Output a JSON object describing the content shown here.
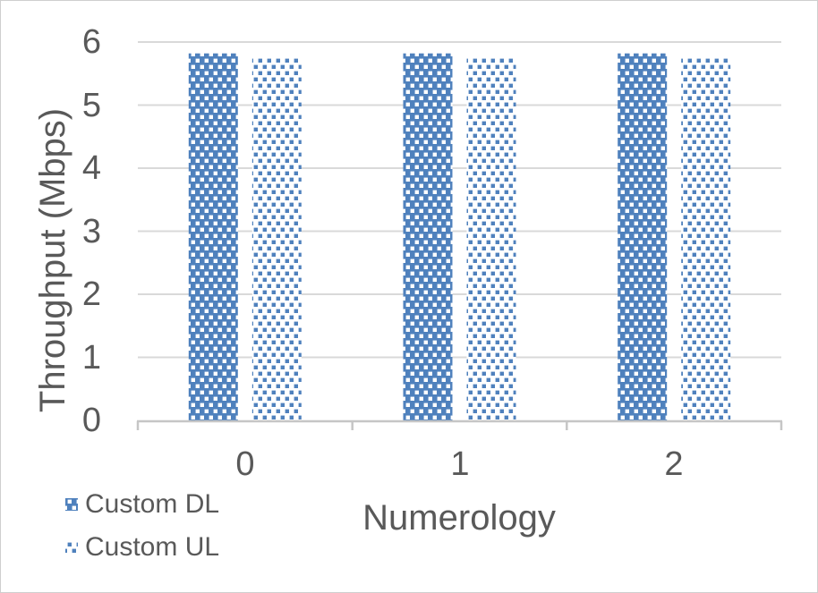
{
  "chart_data": {
    "type": "bar",
    "categories": [
      "0",
      "1",
      "2"
    ],
    "series": [
      {
        "name": "Custom DL",
        "values": [
          5.82,
          5.82,
          5.82
        ],
        "pattern": "white-dots-on-blue"
      },
      {
        "name": "Custom UL",
        "values": [
          5.77,
          5.77,
          5.77
        ],
        "pattern": "blue-dots-on-white"
      }
    ],
    "xlabel": "Numerology",
    "ylabel": "Throughput (Mbps)",
    "ylim": [
      0,
      6
    ],
    "yticks": [
      0,
      1,
      2,
      3,
      4,
      5,
      6
    ],
    "grid": "horizontal",
    "legend_position": "bottom-left",
    "colors": {
      "bar_blue": "#4F81BD",
      "gridline": "#D9D9D9",
      "axis_line": "#C6C6C6",
      "text": "#595959"
    }
  }
}
